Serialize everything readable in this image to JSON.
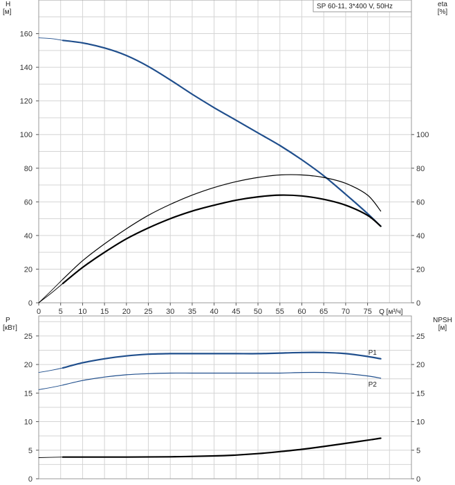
{
  "model_label": "SP 60-11, 3*400 V, 50Hz",
  "colors": {
    "blue": "#1f4e8c",
    "black": "#000000",
    "grid": "#d4d4d4",
    "frame": "#9a9a9a"
  },
  "chart_data": [
    {
      "type": "line",
      "panel": "upper",
      "x_ticks": [
        0,
        5,
        10,
        15,
        20,
        25,
        30,
        35,
        40,
        45,
        50,
        55,
        60,
        65,
        70,
        75
      ],
      "xlabel": "Q [м³/ч]",
      "xlim": [
        0,
        85
      ],
      "left_axis": {
        "label_top": "H",
        "label_unit": "[м]",
        "ticks": [
          0,
          20,
          40,
          60,
          80,
          100,
          120,
          140,
          160
        ],
        "ylim": [
          0,
          180
        ]
      },
      "right_axis": {
        "label_top": "eta",
        "label_unit": "[%]",
        "ticks": [
          0,
          20,
          40,
          60,
          80,
          100
        ],
        "ylim": [
          0,
          180
        ]
      },
      "grid": true,
      "series": [
        {
          "id": "H_extrapolated",
          "color": "#1f4e8c",
          "width": 0.9,
          "x": [
            0,
            3,
            5.5
          ],
          "y": [
            157.5,
            157,
            156
          ]
        },
        {
          "id": "H",
          "color": "#1f4e8c",
          "width": 2.2,
          "x": [
            5.5,
            10,
            15,
            20,
            25,
            30,
            35,
            40,
            45,
            50,
            55,
            60,
            65,
            70,
            75,
            78
          ],
          "y": [
            156,
            154.5,
            151.5,
            147,
            140.5,
            132.5,
            124,
            116,
            108.5,
            101,
            93.5,
            85,
            75.5,
            64.5,
            53,
            45.5
          ]
        },
        {
          "id": "eta_thin_extrapolated",
          "color": "#000000",
          "width": 0.9,
          "x": [
            0,
            3,
            5.5
          ],
          "y": [
            0,
            7.5,
            14
          ]
        },
        {
          "id": "eta_thin",
          "color": "#000000",
          "width": 1.2,
          "x": [
            5.5,
            10,
            15,
            20,
            25,
            30,
            35,
            40,
            45,
            50,
            55,
            60,
            65,
            70,
            75,
            78
          ],
          "y": [
            14,
            25,
            35,
            44,
            52,
            58.5,
            64,
            68.5,
            72,
            74.5,
            76,
            76,
            74.5,
            71,
            64,
            54.5
          ]
        },
        {
          "id": "eta_thick_extrapolated",
          "color": "#000000",
          "width": 0.9,
          "x": [
            0,
            3,
            5.5
          ],
          "y": [
            0,
            6,
            11.5
          ]
        },
        {
          "id": "eta_thick",
          "color": "#000000",
          "width": 2.2,
          "x": [
            5.5,
            10,
            15,
            20,
            25,
            30,
            35,
            40,
            45,
            50,
            55,
            60,
            65,
            70,
            75,
            78
          ],
          "y": [
            11.5,
            21,
            30,
            38,
            44.5,
            50,
            54.5,
            58,
            61,
            63,
            64,
            63.5,
            61.5,
            58,
            52,
            45.5
          ]
        }
      ]
    },
    {
      "type": "line",
      "panel": "lower",
      "xlim": [
        0,
        85
      ],
      "left_axis": {
        "label_top": "P",
        "label_unit": "[кВт]",
        "ticks": [
          0,
          5,
          10,
          15,
          20,
          25
        ],
        "ylim": [
          0,
          28.5
        ]
      },
      "right_axis": {
        "label_top": "NPSH",
        "label_unit": "[м]",
        "ticks": [
          0,
          5,
          10,
          15,
          20,
          25
        ],
        "ylim": [
          0,
          28.5
        ]
      },
      "grid": true,
      "series": [
        {
          "id": "P1_extrapolated",
          "color": "#1f4e8c",
          "width": 0.9,
          "x": [
            0,
            3,
            5.5
          ],
          "y": [
            18.6,
            19.0,
            19.4
          ]
        },
        {
          "id": "P1",
          "name": "P1",
          "color": "#1f4e8c",
          "width": 2.2,
          "x": [
            5.5,
            10,
            15,
            20,
            25,
            30,
            35,
            40,
            45,
            50,
            55,
            60,
            65,
            70,
            75,
            78
          ],
          "y": [
            19.4,
            20.3,
            21.0,
            21.5,
            21.8,
            21.9,
            21.9,
            21.9,
            21.9,
            21.9,
            22.0,
            22.1,
            22.1,
            21.9,
            21.4,
            21.0
          ]
        },
        {
          "id": "P2_extrapolated",
          "color": "#1f4e8c",
          "width": 0.9,
          "x": [
            0,
            3,
            5.5
          ],
          "y": [
            15.6,
            16.0,
            16.4
          ]
        },
        {
          "id": "P2",
          "name": "P2",
          "color": "#1f4e8c",
          "width": 1.2,
          "x": [
            5.5,
            10,
            15,
            20,
            25,
            30,
            35,
            40,
            45,
            50,
            55,
            60,
            65,
            70,
            75,
            78
          ],
          "y": [
            16.4,
            17.2,
            17.8,
            18.2,
            18.4,
            18.5,
            18.5,
            18.5,
            18.5,
            18.5,
            18.5,
            18.6,
            18.6,
            18.4,
            18.0,
            17.6
          ]
        },
        {
          "id": "NPSH_extrapolated",
          "color": "#000000",
          "width": 0.9,
          "x": [
            0,
            5.5
          ],
          "y": [
            3.7,
            3.8
          ]
        },
        {
          "id": "NPSH",
          "color": "#000000",
          "width": 2.2,
          "x": [
            5.5,
            10,
            20,
            30,
            40,
            45,
            50,
            55,
            60,
            65,
            70,
            75,
            78
          ],
          "y": [
            3.8,
            3.8,
            3.8,
            3.85,
            4.0,
            4.15,
            4.4,
            4.75,
            5.15,
            5.65,
            6.2,
            6.75,
            7.1
          ]
        }
      ]
    }
  ]
}
